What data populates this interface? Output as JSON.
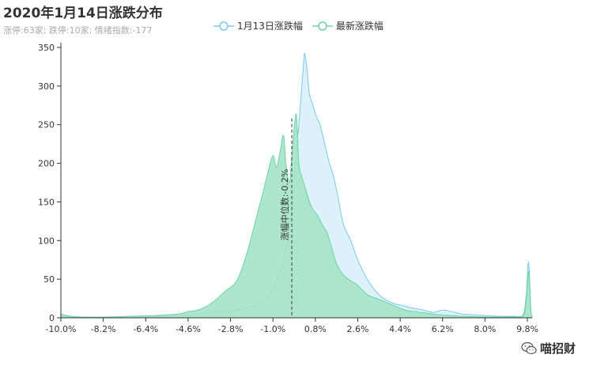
{
  "chart_data": {
    "type": "area",
    "title": "2020年1月14日涨跌分布",
    "subtitle": "涨停:63家; 跌停:10家; 情绪指数:-177",
    "xlabel": "",
    "ylabel": "",
    "xlim": [
      -10.0,
      10.0
    ],
    "ylim": [
      0,
      350
    ],
    "x_ticks": [
      "-10.0%",
      "-8.2%",
      "-6.4%",
      "-4.6%",
      "-2.8%",
      "-1.0%",
      "0.8%",
      "2.6%",
      "4.4%",
      "6.2%",
      "8.0%",
      "9.8%"
    ],
    "x_tick_values": [
      -10.0,
      -8.2,
      -6.4,
      -4.6,
      -2.8,
      -1.0,
      0.8,
      2.6,
      4.4,
      6.2,
      8.0,
      9.8
    ],
    "y_ticks": [
      "0",
      "50",
      "100",
      "150",
      "200",
      "250",
      "300",
      "350"
    ],
    "y_tick_values": [
      0,
      50,
      100,
      150,
      200,
      250,
      300,
      350
    ],
    "legend_position": "top-center",
    "grid": false,
    "median": {
      "x": -0.2,
      "label": "涨幅中位数:-0.2%"
    },
    "series": [
      {
        "name": "1月13日涨跌幅",
        "color": "#7ac8ee",
        "fill": "#d7eff9",
        "points": [
          [
            -10.0,
            3
          ],
          [
            -9.5,
            1
          ],
          [
            -8.0,
            1
          ],
          [
            -6.0,
            2
          ],
          [
            -4.8,
            3
          ],
          [
            -4.3,
            5
          ],
          [
            -3.4,
            8
          ],
          [
            -2.6,
            10
          ],
          [
            -2.0,
            14
          ],
          [
            -1.6,
            18
          ],
          [
            -1.3,
            24
          ],
          [
            -1.0,
            38
          ],
          [
            -0.8,
            52
          ],
          [
            -0.6,
            70
          ],
          [
            -0.4,
            100
          ],
          [
            -0.2,
            140
          ],
          [
            0.0,
            220
          ],
          [
            0.1,
            250
          ],
          [
            0.2,
            290
          ],
          [
            0.3,
            330
          ],
          [
            0.35,
            342
          ],
          [
            0.45,
            320
          ],
          [
            0.55,
            290
          ],
          [
            0.7,
            275
          ],
          [
            0.85,
            260
          ],
          [
            1.0,
            250
          ],
          [
            1.2,
            225
          ],
          [
            1.4,
            200
          ],
          [
            1.6,
            180
          ],
          [
            1.8,
            150
          ],
          [
            2.0,
            120
          ],
          [
            2.3,
            100
          ],
          [
            2.6,
            75
          ],
          [
            3.0,
            50
          ],
          [
            3.4,
            33
          ],
          [
            3.8,
            23
          ],
          [
            4.2,
            18
          ],
          [
            4.6,
            15
          ],
          [
            5.0,
            12
          ],
          [
            5.4,
            10
          ],
          [
            5.8,
            7
          ],
          [
            6.2,
            10
          ],
          [
            6.6,
            8
          ],
          [
            7.0,
            5
          ],
          [
            7.5,
            4
          ],
          [
            8.0,
            3
          ],
          [
            8.6,
            2
          ],
          [
            9.2,
            2
          ],
          [
            9.6,
            3
          ],
          [
            9.75,
            30
          ],
          [
            9.85,
            72
          ],
          [
            9.95,
            10
          ],
          [
            10.0,
            0
          ]
        ]
      },
      {
        "name": "最新涨跌幅",
        "color": "#6fd3a4",
        "fill": "#a4e3c7",
        "points": [
          [
            -10.0,
            5
          ],
          [
            -9.6,
            2
          ],
          [
            -9.0,
            1
          ],
          [
            -8.0,
            1
          ],
          [
            -7.0,
            2
          ],
          [
            -6.0,
            3
          ],
          [
            -5.0,
            5
          ],
          [
            -4.6,
            8
          ],
          [
            -4.2,
            10
          ],
          [
            -3.8,
            15
          ],
          [
            -3.4,
            24
          ],
          [
            -3.0,
            35
          ],
          [
            -2.6,
            45
          ],
          [
            -2.3,
            65
          ],
          [
            -2.0,
            95
          ],
          [
            -1.7,
            130
          ],
          [
            -1.4,
            165
          ],
          [
            -1.2,
            190
          ],
          [
            -1.0,
            210
          ],
          [
            -0.85,
            195
          ],
          [
            -0.7,
            215
          ],
          [
            -0.55,
            236
          ],
          [
            -0.45,
            200
          ],
          [
            -0.3,
            175
          ],
          [
            -0.2,
            210
          ],
          [
            -0.1,
            245
          ],
          [
            0.0,
            262
          ],
          [
            0.1,
            200
          ],
          [
            0.25,
            180
          ],
          [
            0.4,
            165
          ],
          [
            0.55,
            150
          ],
          [
            0.7,
            140
          ],
          [
            0.9,
            132
          ],
          [
            1.1,
            120
          ],
          [
            1.3,
            110
          ],
          [
            1.5,
            90
          ],
          [
            1.7,
            70
          ],
          [
            2.0,
            55
          ],
          [
            2.3,
            48
          ],
          [
            2.6,
            42
          ],
          [
            3.0,
            30
          ],
          [
            3.4,
            25
          ],
          [
            3.8,
            20
          ],
          [
            4.2,
            15
          ],
          [
            4.6,
            10
          ],
          [
            5.0,
            8
          ],
          [
            5.5,
            6
          ],
          [
            6.0,
            4
          ],
          [
            6.5,
            3
          ],
          [
            7.0,
            2
          ],
          [
            8.0,
            1
          ],
          [
            9.0,
            1
          ],
          [
            9.6,
            2
          ],
          [
            9.75,
            25
          ],
          [
            9.85,
            60
          ],
          [
            9.95,
            8
          ],
          [
            10.0,
            0
          ]
        ]
      }
    ]
  },
  "legend": [
    {
      "label": "1月13日涨跌幅",
      "color": "#7ac8ee"
    },
    {
      "label": "最新涨跌幅",
      "color": "#6fd3a4"
    }
  ],
  "watermark": {
    "icon": "wechat-icon",
    "text": "喵招财"
  }
}
